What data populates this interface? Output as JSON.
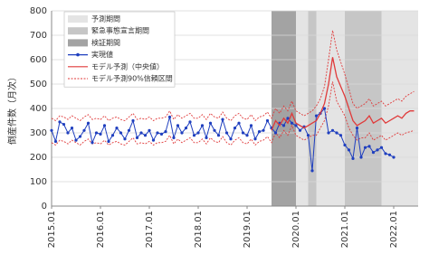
{
  "chart_data": {
    "type": "line",
    "y_label": "倒産件数（月次）",
    "categories": [
      "2015.01",
      null,
      null,
      null,
      null,
      null,
      null,
      null,
      null,
      null,
      null,
      null,
      "2016.01",
      null,
      null,
      null,
      null,
      null,
      null,
      null,
      null,
      null,
      null,
      null,
      "2017.01",
      null,
      null,
      null,
      null,
      null,
      null,
      null,
      null,
      null,
      null,
      null,
      "2018.01",
      null,
      null,
      null,
      null,
      null,
      null,
      null,
      null,
      null,
      null,
      null,
      "2019.01",
      null,
      null,
      null,
      null,
      null,
      null,
      null,
      null,
      null,
      null,
      null,
      "2020.01",
      null,
      null,
      null,
      null,
      null,
      null,
      null,
      null,
      null,
      null,
      null,
      "2021.01",
      null,
      null,
      null,
      null,
      null,
      null,
      null,
      null,
      null,
      null,
      null,
      "2022.01",
      null,
      null,
      null,
      null,
      null
    ],
    "regions": [
      {
        "name": "予測期間",
        "color": "#e4e4e4",
        "start": "2020.01",
        "end": "2022.06"
      },
      {
        "name": "緊急事態宣言期間",
        "color": "#c6c6c6",
        "start": "2020.04",
        "end": "2020.05"
      },
      {
        "name": "緊急事態宣言期間",
        "color": "#c6c6c6",
        "start": "2021.01",
        "end": "2021.09"
      },
      {
        "name": "検証期間",
        "color": "#a3a3a3",
        "start": "2019.07",
        "end": "2019.12"
      }
    ],
    "series": [
      {
        "name": "実現値",
        "color": "#1f3fbf",
        "style": "markers",
        "values": [
          310,
          265,
          345,
          335,
          300,
          320,
          270,
          285,
          310,
          340,
          260,
          300,
          295,
          330,
          265,
          290,
          320,
          300,
          275,
          310,
          350,
          280,
          300,
          290,
          310,
          270,
          300,
          295,
          305,
          365,
          280,
          330,
          300,
          320,
          345,
          290,
          300,
          330,
          280,
          340,
          310,
          290,
          355,
          300,
          275,
          320,
          340,
          300,
          290,
          330,
          275,
          305,
          310,
          350,
          320,
          300,
          340,
          330,
          360,
          340,
          330,
          310,
          325,
          290,
          145,
          370,
          380,
          400,
          300,
          310,
          300,
          290,
          250,
          230,
          195,
          320,
          200,
          240,
          245,
          220,
          230,
          240,
          215,
          210,
          200,
          null,
          null,
          null,
          null,
          null
        ]
      },
      {
        "name": "モデル予測（中央値）",
        "color": "#e03a3a",
        "style": "solid",
        "values": [
          null,
          null,
          null,
          null,
          null,
          null,
          null,
          null,
          null,
          null,
          null,
          null,
          null,
          null,
          null,
          null,
          null,
          null,
          null,
          null,
          null,
          null,
          null,
          null,
          null,
          null,
          null,
          null,
          null,
          null,
          null,
          null,
          null,
          null,
          null,
          null,
          null,
          null,
          null,
          null,
          null,
          null,
          null,
          null,
          null,
          null,
          null,
          null,
          null,
          null,
          null,
          null,
          null,
          null,
          310,
          350,
          330,
          360,
          340,
          380,
          340,
          330,
          320,
          330,
          340,
          350,
          380,
          420,
          500,
          610,
          530,
          490,
          450,
          400,
          350,
          330,
          340,
          350,
          370,
          340,
          350,
          360,
          340,
          350,
          360,
          370,
          360,
          380,
          390,
          390
        ]
      }
    ],
    "interval": {
      "name": "モデル予測90%信頼区間",
      "color": "#e03a3a",
      "upper": [
        360,
        350,
        370,
        365,
        355,
        370,
        360,
        350,
        365,
        375,
        355,
        360,
        355,
        370,
        350,
        360,
        365,
        355,
        350,
        365,
        380,
        355,
        360,
        355,
        365,
        350,
        360,
        360,
        365,
        390,
        355,
        375,
        360,
        370,
        380,
        360,
        360,
        375,
        355,
        380,
        365,
        360,
        385,
        360,
        350,
        370,
        380,
        360,
        355,
        375,
        350,
        365,
        370,
        385,
        360,
        400,
        380,
        410,
        390,
        430,
        390,
        380,
        370,
        380,
        390,
        410,
        440,
        490,
        600,
        720,
        640,
        590,
        540,
        480,
        420,
        400,
        410,
        420,
        440,
        410,
        420,
        430,
        410,
        420,
        430,
        440,
        430,
        450,
        460,
        470
      ],
      "lower": [
        260,
        250,
        270,
        265,
        255,
        270,
        260,
        250,
        265,
        275,
        255,
        260,
        255,
        270,
        250,
        260,
        265,
        255,
        250,
        265,
        280,
        255,
        260,
        255,
        265,
        250,
        260,
        260,
        265,
        290,
        255,
        275,
        260,
        270,
        280,
        260,
        260,
        275,
        255,
        280,
        265,
        260,
        285,
        260,
        250,
        270,
        280,
        260,
        255,
        275,
        250,
        265,
        270,
        285,
        260,
        300,
        280,
        310,
        290,
        330,
        290,
        280,
        270,
        280,
        290,
        290,
        320,
        350,
        410,
        510,
        430,
        400,
        370,
        320,
        290,
        270,
        280,
        280,
        300,
        270,
        280,
        290,
        270,
        280,
        290,
        300,
        290,
        300,
        305,
        310
      ]
    },
    "ylim": [
      0,
      800
    ],
    "yticks": [
      0,
      100,
      200,
      300,
      400,
      500,
      600,
      700,
      800
    ],
    "grid": true,
    "legend": "upper-left"
  }
}
